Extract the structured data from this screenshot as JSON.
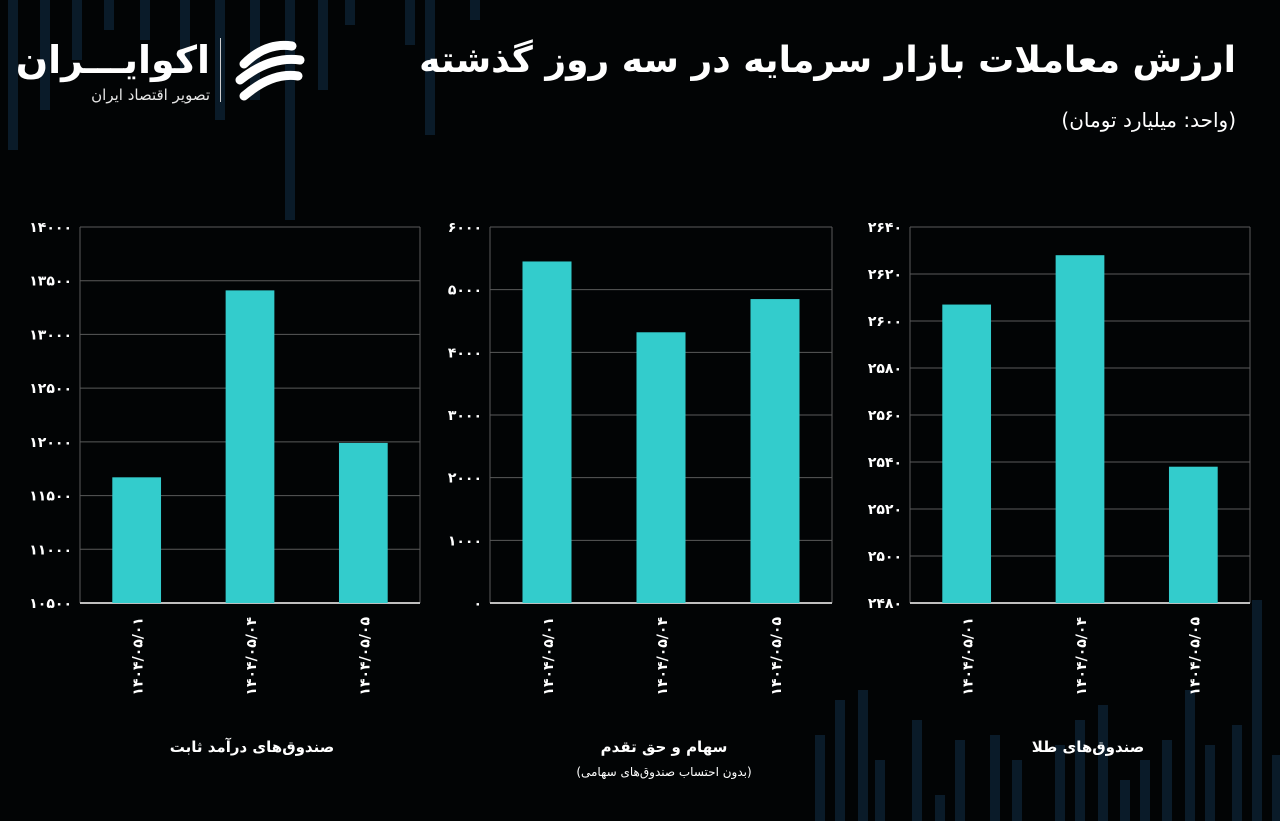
{
  "header": {
    "title": "ارزش معاملات بازار سرمایه در سه روز گذشته",
    "unit": "(واحد: میلیارد تومان)"
  },
  "brand": {
    "name": "اکوایـــران",
    "tagline": "تصویر اقتصاد ایران"
  },
  "colors": {
    "bar": "#33CCCC",
    "background": "#020405",
    "grid": "#5a5a5a",
    "text": "#ffffff"
  },
  "chart_data": [
    {
      "type": "bar",
      "title": "صندوق‌های درآمد ثابت",
      "subtitle": "",
      "categories": [
        "۱۴۰۴/۰۵/۰۱",
        "۱۴۰۴/۰۵/۰۴",
        "۱۴۰۴/۰۵/۰۵"
      ],
      "values": [
        11670,
        13410,
        11990
      ],
      "ylim": [
        10500,
        14000
      ],
      "yticks": [
        10500,
        11000,
        11500,
        12000,
        12500,
        13000,
        13500,
        14000
      ],
      "ytick_labels": [
        "۱۰۵۰۰",
        "۱۱۰۰۰",
        "۱۱۵۰۰",
        "۱۲۰۰۰",
        "۱۲۵۰۰",
        "۱۳۰۰۰",
        "۱۳۵۰۰",
        "۱۴۰۰۰"
      ],
      "grid": true
    },
    {
      "type": "bar",
      "title": "سهام و حق تقدم",
      "subtitle": "(بدون احتساب صندوق‌های سهامی)",
      "categories": [
        "۱۴۰۴/۰۵/۰۱",
        "۱۴۰۴/۰۵/۰۴",
        "۱۴۰۴/۰۵/۰۵"
      ],
      "values": [
        5450,
        4320,
        4850
      ],
      "ylim": [
        0,
        6000
      ],
      "yticks": [
        0,
        1000,
        2000,
        3000,
        4000,
        5000,
        6000
      ],
      "ytick_labels": [
        "۰",
        "۱۰۰۰",
        "۲۰۰۰",
        "۳۰۰۰",
        "۴۰۰۰",
        "۵۰۰۰",
        "۶۰۰۰"
      ],
      "grid": true
    },
    {
      "type": "bar",
      "title": "صندوق‌های طلا",
      "subtitle": "",
      "categories": [
        "۱۴۰۴/۰۵/۰۱",
        "۱۴۰۴/۰۵/۰۴",
        "۱۴۰۴/۰۵/۰۵"
      ],
      "values": [
        2607,
        2628,
        2538
      ],
      "ylim": [
        2480,
        2640
      ],
      "yticks": [
        2480,
        2500,
        2520,
        2540,
        2560,
        2580,
        2600,
        2620,
        2640
      ],
      "ytick_labels": [
        "۲۴۸۰",
        "۲۵۰۰",
        "۲۵۲۰",
        "۲۵۴۰",
        "۲۵۶۰",
        "۲۵۸۰",
        "۲۶۰۰",
        "۲۶۲۰",
        "۲۶۴۰"
      ],
      "grid": true
    }
  ]
}
